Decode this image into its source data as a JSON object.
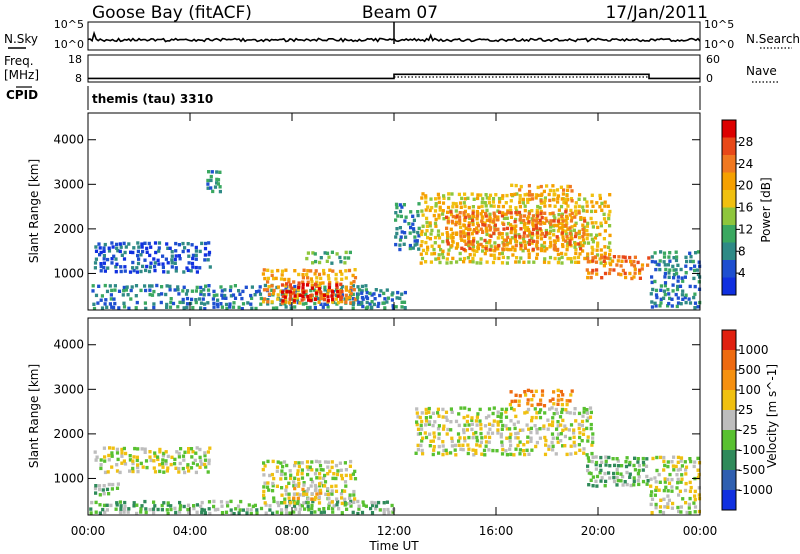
{
  "header": {
    "station": "Goose Bay (fitACF)",
    "beam": "Beam 07",
    "date": "17/Jan/2011"
  },
  "noise_panel": {
    "left_label": "N.Sky",
    "right_label": "N.Search",
    "left_ticks": [
      "10^5",
      "10^0"
    ],
    "right_ticks": [
      "10^5",
      "10^0"
    ]
  },
  "freq_panel": {
    "left_label_1": "Freq.",
    "left_label_2": "[MHz]",
    "right_label": "Nave",
    "left_ticks": [
      "18",
      "8"
    ],
    "right_ticks": [
      "60",
      "0"
    ],
    "nave_steps": [
      {
        "start_hour": 0,
        "end_hour": 12,
        "value": 8
      },
      {
        "start_hour": 12,
        "end_hour": 22,
        "value": 17
      },
      {
        "start_hour": 22,
        "end_hour": 24,
        "value": 8
      }
    ]
  },
  "cpid_panel": {
    "label": "CPID",
    "text": "themis (tau) 3310"
  },
  "power_panel": {
    "ylabel": "Slant Range [km]",
    "yticks": [
      "1000",
      "2000",
      "3000",
      "4000"
    ],
    "colorbar_label": "Power [dB]",
    "colorbar_ticks": [
      "4",
      "8",
      "12",
      "16",
      "20",
      "24",
      "28"
    ],
    "colorbar_colors": [
      "#1030e0",
      "#1e4fd0",
      "#2f8a86",
      "#3aa860",
      "#8ec63c",
      "#f0c010",
      "#f5a000",
      "#f07820",
      "#e84818",
      "#dc0000"
    ]
  },
  "velocity_panel": {
    "ylabel": "Slant Range [km]",
    "yticks": [
      "1000",
      "2000",
      "3000",
      "4000"
    ],
    "colorbar_label": "Velocity [m s^-1]",
    "colorbar_ticks": [
      "1000",
      "500",
      "100",
      "25",
      "-25",
      "-100",
      "-500",
      "-1000"
    ],
    "colorbar_colors": [
      "#1030e0",
      "#2f5fb0",
      "#2f8a5a",
      "#58c030",
      "#bdbdbd",
      "#f0c010",
      "#f59010",
      "#ee6a10",
      "#e02010"
    ]
  },
  "x_axis": {
    "label": "Time UT",
    "ticks": [
      "00:00",
      "04:00",
      "08:00",
      "12:00",
      "16:00",
      "20:00",
      "00:00"
    ]
  },
  "chart_data": {
    "type": "heatmap",
    "x_unit": "hours UT",
    "y_unit": "km",
    "xlim": [
      0,
      24
    ],
    "ylim": [
      180,
      4600
    ],
    "power_regions": [
      {
        "t0": 0.2,
        "t1": 4.8,
        "r0": 1000,
        "r1": 1700,
        "level": 1
      },
      {
        "t0": 4.6,
        "t1": 5.2,
        "r0": 2800,
        "r1": 3300,
        "level": 2
      },
      {
        "t0": 0.1,
        "t1": 12.0,
        "r0": 180,
        "r1": 750,
        "level": 2
      },
      {
        "t0": 6.8,
        "t1": 10.5,
        "r0": 300,
        "r1": 1100,
        "level": 6
      },
      {
        "t0": 7.5,
        "t1": 10.0,
        "r0": 350,
        "r1": 800,
        "level": 9
      },
      {
        "t0": 8.5,
        "t1": 10.3,
        "r0": 1200,
        "r1": 1500,
        "level": 3
      },
      {
        "t0": 10.3,
        "t1": 12.5,
        "r0": 200,
        "r1": 600,
        "level": 2
      },
      {
        "t0": 12.0,
        "t1": 13.0,
        "r0": 1500,
        "r1": 2600,
        "level": 2
      },
      {
        "t0": 13.0,
        "t1": 20.5,
        "r0": 1200,
        "r1": 2800,
        "level": 5
      },
      {
        "t0": 14.0,
        "t1": 19.5,
        "r0": 1500,
        "r1": 2400,
        "level": 7
      },
      {
        "t0": 16.5,
        "t1": 19.0,
        "r0": 2600,
        "r1": 3000,
        "level": 6
      },
      {
        "t0": 19.5,
        "t1": 22.0,
        "r0": 850,
        "r1": 1400,
        "level": 7
      },
      {
        "t0": 22.0,
        "t1": 24.0,
        "r0": 200,
        "r1": 1500,
        "level": 2
      }
    ],
    "velocity_regions": [
      {
        "t0": 0.0,
        "t1": 12.0,
        "r0": 180,
        "r1": 500,
        "level": 3
      },
      {
        "t0": 0.2,
        "t1": 1.2,
        "r0": 600,
        "r1": 900,
        "level": 3
      },
      {
        "t0": 0.2,
        "t1": 4.8,
        "r0": 1100,
        "r1": 1700,
        "level": 4
      },
      {
        "t0": 6.8,
        "t1": 10.5,
        "r0": 400,
        "r1": 1400,
        "level": 4
      },
      {
        "t0": 8.0,
        "t1": 9.5,
        "r0": 500,
        "r1": 900,
        "level": 5
      },
      {
        "t0": 12.8,
        "t1": 19.8,
        "r0": 1500,
        "r1": 2600,
        "level": 4
      },
      {
        "t0": 16.5,
        "t1": 19.0,
        "r0": 2600,
        "r1": 3000,
        "level": 6
      },
      {
        "t0": 19.5,
        "t1": 22.0,
        "r0": 800,
        "r1": 1500,
        "level": 3
      },
      {
        "t0": 22.0,
        "t1": 24.0,
        "r0": 200,
        "r1": 1500,
        "level": 4
      }
    ]
  }
}
